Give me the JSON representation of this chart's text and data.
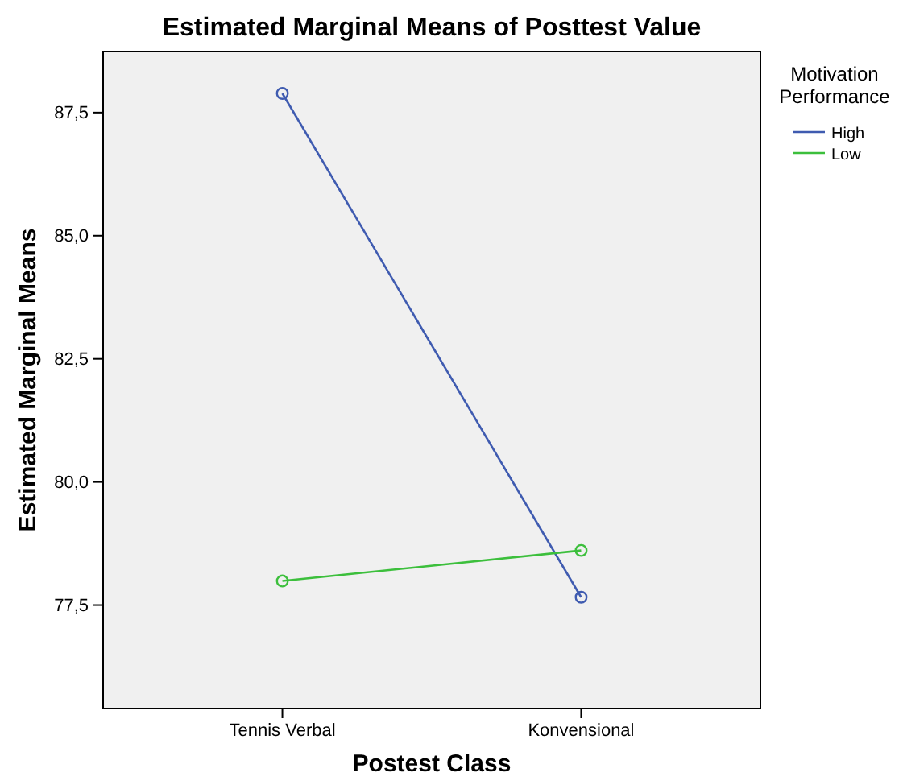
{
  "chart_data": {
    "type": "line",
    "title": "Estimated Marginal Means of Posttest Value",
    "xlabel": "Postest Class",
    "ylabel": "Estimated Marginal Means",
    "legend_title": "Motivation Performance",
    "categories": [
      "Tennis Verbal",
      "Konvensional"
    ],
    "series": [
      {
        "name": "High",
        "color": "#3f5bb0",
        "values": [
          87.89,
          77.66
        ]
      },
      {
        "name": "Low",
        "color": "#3cbf3c",
        "values": [
          77.99,
          78.61
        ]
      }
    ],
    "ylim": [
      75.4,
      88.74
    ],
    "yticks": [
      {
        "value": 77.5,
        "label": "77,5"
      },
      {
        "value": 80,
        "label": "80,0"
      },
      {
        "value": 82.5,
        "label": "82,5"
      },
      {
        "value": 85,
        "label": "85,0"
      },
      {
        "value": 87.5,
        "label": "87,5"
      }
    ],
    "grid": false,
    "legend": "top right",
    "marker": "circle",
    "line_style": "solid"
  }
}
